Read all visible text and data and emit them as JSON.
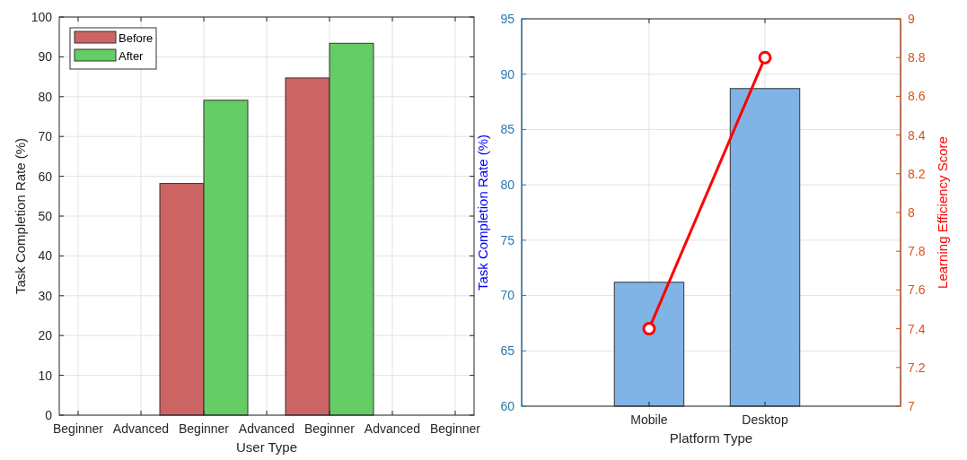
{
  "chart_data": [
    {
      "type": "bar",
      "xlabel": "User Type",
      "ylabel": "Task Completion Rate (%)",
      "categories": [
        "Beginner",
        "Advanced",
        "Beginner",
        "Advanced",
        "Beginner",
        "Advanced",
        "Beginner"
      ],
      "ylim": [
        0,
        100
      ],
      "yticks": [
        0,
        10,
        20,
        30,
        40,
        50,
        60,
        70,
        80,
        90,
        100
      ],
      "grid": true,
      "legend": "top left",
      "series": [
        {
          "name": "Before",
          "color": "#cd6464",
          "values": [
            null,
            null,
            58.2,
            null,
            84.7,
            null,
            null
          ]
        },
        {
          "name": "After",
          "color": "#66cc66",
          "values": [
            null,
            null,
            79.1,
            null,
            93.4,
            null,
            null
          ]
        }
      ]
    },
    {
      "type": "bar",
      "xlabel": "Platform Type",
      "ylabel": "Task Completion Rate (%)",
      "y2label": "Learning Efficiency Score",
      "categories": [
        "Mobile",
        "Desktop"
      ],
      "ylim": [
        60,
        95
      ],
      "yticks": [
        60,
        65,
        70,
        75,
        80,
        85,
        90,
        95
      ],
      "y2lim": [
        7,
        9
      ],
      "y2ticks": [
        7,
        7.2,
        7.4,
        7.6,
        7.8,
        8,
        8.2,
        8.4,
        8.6,
        8.8,
        9
      ],
      "grid": true,
      "series": [
        {
          "color": "#80b3e6",
          "values": [
            71.2,
            88.7
          ]
        },
        {
          "type": "line",
          "axis": "y2",
          "color": "#ff0000",
          "marker": "circle",
          "values": [
            7.4,
            8.8
          ]
        }
      ]
    }
  ]
}
